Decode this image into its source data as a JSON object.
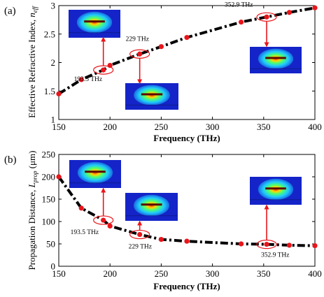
{
  "chart_data": [
    {
      "type": "line",
      "panel_label": "(a)",
      "xlabel": "Frequency (THz)",
      "ylabel_main": "Effective Refractive Index, ",
      "ylabel_italic": "n",
      "ylabel_sub": "eff",
      "xlim": [
        150,
        400
      ],
      "ylim": [
        1,
        3
      ],
      "xticks": [
        "150",
        "200",
        "250",
        "300",
        "350",
        "400"
      ],
      "yticks": [
        "1",
        "1.5",
        "2",
        "2.5",
        "3"
      ],
      "grid": false,
      "x": [
        150,
        172,
        193.5,
        200,
        229,
        250,
        275,
        328,
        352.9,
        375,
        400
      ],
      "y": [
        1.45,
        1.7,
        1.87,
        1.95,
        2.15,
        2.28,
        2.44,
        2.71,
        2.8,
        2.88,
        2.96
      ],
      "line_color": "#000000",
      "marker_color": "#e8161b",
      "annotations": [
        {
          "label": "193.5 THz",
          "x": 193.5,
          "y": 1.87,
          "inset_direction": "up"
        },
        {
          "label": "229 THz",
          "x": 229,
          "y": 2.15,
          "inset_direction": "down"
        },
        {
          "label": "352.9 THz",
          "x": 352.9,
          "y": 2.8,
          "inset_direction": "down"
        }
      ]
    },
    {
      "type": "line",
      "panel_label": "(b)",
      "xlabel": "Frequency (THz)",
      "ylabel_main": "Propagation Distance, ",
      "ylabel_italic": "L",
      "ylabel_sub": "prop",
      "ylabel_unit": " (μm)",
      "xlim": [
        150,
        400
      ],
      "ylim": [
        0,
        250
      ],
      "xticks": [
        "150",
        "200",
        "250",
        "300",
        "350",
        "400"
      ],
      "yticks": [
        "0",
        "50",
        "100",
        "150",
        "200",
        "250"
      ],
      "grid": false,
      "x": [
        150,
        172,
        193.5,
        200,
        229,
        250,
        275,
        328,
        352.9,
        375,
        400
      ],
      "y": [
        200,
        130,
        103,
        90,
        71,
        60,
        56,
        50,
        49,
        47,
        46
      ],
      "line_color": "#000000",
      "marker_color": "#e8161b",
      "annotations": [
        {
          "label": "193.5 THz",
          "x": 193.5,
          "y": 103,
          "inset_direction": "up"
        },
        {
          "label": "229 THz",
          "x": 229,
          "y": 71,
          "inset_direction": "up"
        },
        {
          "label": "352.9 THz",
          "x": 352.9,
          "y": 49,
          "inset_direction": "up"
        }
      ]
    }
  ]
}
